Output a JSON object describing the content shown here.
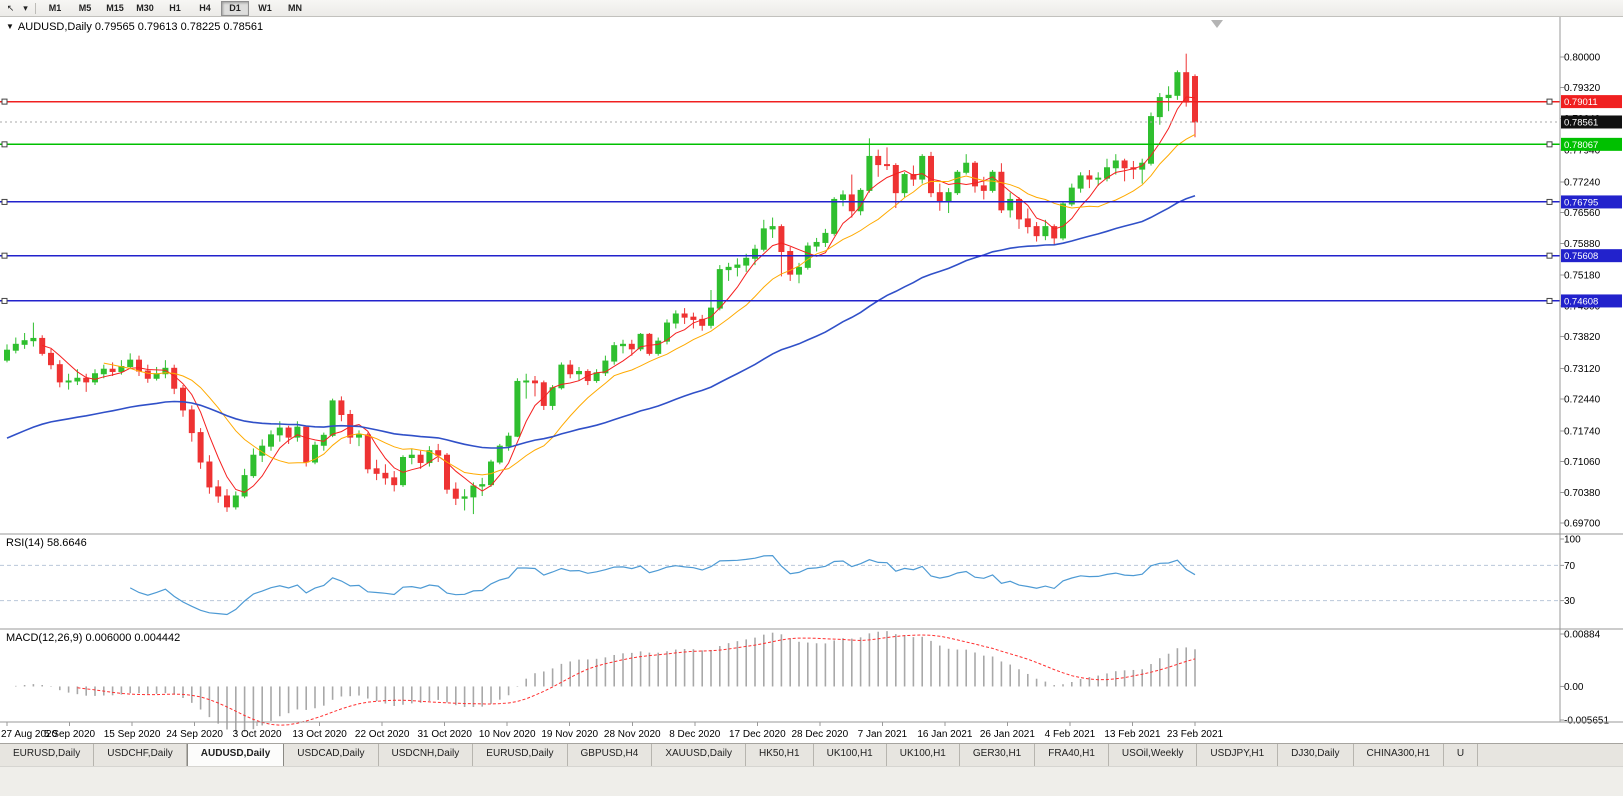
{
  "toolbar": {
    "icons": [
      {
        "name": "cursor-arrow-icon",
        "glyph": "↖"
      },
      {
        "name": "dropdown-caret-icon",
        "glyph": "▾"
      }
    ],
    "timeframes": [
      {
        "label": "M1"
      },
      {
        "label": "M5"
      },
      {
        "label": "M15"
      },
      {
        "label": "M30"
      },
      {
        "label": "H1"
      },
      {
        "label": "H4"
      },
      {
        "label": "D1"
      },
      {
        "label": "W1"
      },
      {
        "label": "MN"
      }
    ],
    "active_timeframe": "D1"
  },
  "chart_data": {
    "type": "candlestick",
    "symbol": "AUDUSD",
    "timeframe": "Daily",
    "title": "AUDUSD,Daily 0.79565 0.79613 0.78225 0.78561",
    "last_candle_ohlc": {
      "open": "0.79565",
      "high": "0.79613",
      "low": "0.78225",
      "close": "0.78561"
    },
    "price_axis": {
      "min": 0.6946,
      "max": 0.8088,
      "ticks": [
        "0.80000",
        "0.79320",
        "0.78640",
        "0.77940",
        "0.77240",
        "0.76560",
        "0.75880",
        "0.75180",
        "0.74500",
        "0.73820",
        "0.73120",
        "0.72440",
        "0.71740",
        "0.71060",
        "0.70380",
        "0.69700"
      ]
    },
    "date_ticks": [
      "27 Aug 2020",
      "5 Sep 2020",
      "15 Sep 2020",
      "24 Sep 2020",
      "3 Oct 2020",
      "13 Oct 2020",
      "22 Oct 2020",
      "31 Oct 2020",
      "10 Nov 2020",
      "19 Nov 2020",
      "28 Nov 2020",
      "8 Dec 2020",
      "17 Dec 2020",
      "28 Dec 2020",
      "7 Jan 2021",
      "16 Jan 2021",
      "26 Jan 2021",
      "4 Feb 2021",
      "13 Feb 2021",
      "23 Feb 2021"
    ],
    "hlines": [
      {
        "price": 0.79011,
        "label": "0.79011",
        "color": "#f02020",
        "width": 1.3
      },
      {
        "price": 0.78067,
        "label": "0.78067",
        "color": "#00c000",
        "width": 1.6
      },
      {
        "price": 0.76795,
        "label": "0.76795",
        "color": "#2222cc",
        "width": 1.6
      },
      {
        "price": 0.75608,
        "label": "0.75608",
        "color": "#2222cc",
        "width": 1.6
      },
      {
        "price": 0.74608,
        "label": "0.74608",
        "color": "#2222cc",
        "width": 1.6
      }
    ],
    "current_price": {
      "value": 0.78561,
      "label": "0.78561",
      "badge_color": "#111111"
    },
    "moving_averages": [
      {
        "name": "ma-fast",
        "period": 5,
        "type": "sma",
        "color": "#f52020",
        "width": 1
      },
      {
        "name": "ma-mid",
        "period": 12,
        "type": "sma",
        "color": "#ffaa00",
        "width": 1
      },
      {
        "name": "ma-slow",
        "period": 50,
        "type": "ema",
        "seed": 0.715,
        "color": "#3050c8",
        "width": 1.6
      }
    ],
    "style": {
      "up_color": "#2fbf2f",
      "down_color": "#ee3333",
      "rsi_color": "#4d9ad4",
      "level_dash_color": "#b9c7d9",
      "macd_bar_color": "#a8a8a8",
      "macd_signal_color": "#ff3030",
      "axis_line_color": "#9a9a9a",
      "text_color": "#000000"
    },
    "rsi": {
      "label": "RSI(14) 58.6646",
      "period": 14,
      "value": "58.6646",
      "levels": [
        70,
        30
      ],
      "scale_ticks": [
        "100",
        "70",
        "30"
      ]
    },
    "macd": {
      "label": "MACD(12,26,9) 0.006000 0.004442",
      "fast": 12,
      "slow": 26,
      "signal": 9,
      "values": "0.006000 0.004442",
      "scale_top": "0.00884",
      "scale_mid": "0.00",
      "scale_bottom": "-0.005651"
    },
    "candles": [
      [
        0.733,
        0.7365,
        0.7325,
        0.7352
      ],
      [
        0.7352,
        0.738,
        0.7345,
        0.7365
      ],
      [
        0.7365,
        0.739,
        0.7355,
        0.7373
      ],
      [
        0.7373,
        0.7413,
        0.736,
        0.7378
      ],
      [
        0.7378,
        0.7385,
        0.734,
        0.7345
      ],
      [
        0.7345,
        0.7355,
        0.731,
        0.732
      ],
      [
        0.732,
        0.733,
        0.727,
        0.7282
      ],
      [
        0.7282,
        0.73,
        0.7265,
        0.7284
      ],
      [
        0.7284,
        0.731,
        0.7275,
        0.729
      ],
      [
        0.729,
        0.73,
        0.726,
        0.7282
      ],
      [
        0.7282,
        0.731,
        0.7275,
        0.73
      ],
      [
        0.73,
        0.732,
        0.729,
        0.731
      ],
      [
        0.731,
        0.7325,
        0.7295,
        0.7305
      ],
      [
        0.7305,
        0.733,
        0.7298,
        0.7316
      ],
      [
        0.7316,
        0.7345,
        0.731,
        0.733
      ],
      [
        0.733,
        0.734,
        0.7295,
        0.7306
      ],
      [
        0.7306,
        0.732,
        0.728,
        0.729
      ],
      [
        0.729,
        0.7315,
        0.7285,
        0.73
      ],
      [
        0.73,
        0.733,
        0.729,
        0.7312
      ],
      [
        0.7312,
        0.732,
        0.7255,
        0.7268
      ],
      [
        0.7268,
        0.7275,
        0.7205,
        0.722
      ],
      [
        0.722,
        0.723,
        0.715,
        0.717
      ],
      [
        0.717,
        0.718,
        0.709,
        0.7105
      ],
      [
        0.7105,
        0.712,
        0.7035,
        0.705
      ],
      [
        0.705,
        0.7065,
        0.7015,
        0.703
      ],
      [
        0.703,
        0.7045,
        0.6995,
        0.7006
      ],
      [
        0.7006,
        0.704,
        0.7,
        0.703
      ],
      [
        0.703,
        0.709,
        0.7025,
        0.7075
      ],
      [
        0.7075,
        0.7135,
        0.707,
        0.712
      ],
      [
        0.712,
        0.7155,
        0.7105,
        0.714
      ],
      [
        0.714,
        0.7175,
        0.713,
        0.7165
      ],
      [
        0.7165,
        0.7195,
        0.715,
        0.718
      ],
      [
        0.718,
        0.7185,
        0.7145,
        0.716
      ],
      [
        0.716,
        0.7195,
        0.715,
        0.7182
      ],
      [
        0.7182,
        0.7185,
        0.7095,
        0.7105
      ],
      [
        0.7105,
        0.715,
        0.71,
        0.7142
      ],
      [
        0.7142,
        0.717,
        0.713,
        0.7164
      ],
      [
        0.7164,
        0.7245,
        0.716,
        0.724
      ],
      [
        0.724,
        0.725,
        0.7195,
        0.721
      ],
      [
        0.721,
        0.722,
        0.7145,
        0.716
      ],
      [
        0.716,
        0.7175,
        0.714,
        0.7165
      ],
      [
        0.7165,
        0.717,
        0.708,
        0.709
      ],
      [
        0.709,
        0.711,
        0.7065,
        0.708
      ],
      [
        0.708,
        0.71,
        0.7055,
        0.707
      ],
      [
        0.707,
        0.7085,
        0.704,
        0.7055
      ],
      [
        0.7055,
        0.712,
        0.705,
        0.7115
      ],
      [
        0.7115,
        0.7135,
        0.71,
        0.712
      ],
      [
        0.712,
        0.713,
        0.709,
        0.7104
      ],
      [
        0.7104,
        0.714,
        0.7095,
        0.713
      ],
      [
        0.713,
        0.7145,
        0.7105,
        0.712
      ],
      [
        0.712,
        0.7125,
        0.7035,
        0.7045
      ],
      [
        0.7045,
        0.706,
        0.701,
        0.7025
      ],
      [
        0.7025,
        0.7045,
        0.6998,
        0.7028
      ],
      [
        0.7028,
        0.706,
        0.699,
        0.7052
      ],
      [
        0.7052,
        0.707,
        0.703,
        0.7055
      ],
      [
        0.7055,
        0.711,
        0.705,
        0.7105
      ],
      [
        0.7105,
        0.7145,
        0.71,
        0.714
      ],
      [
        0.714,
        0.717,
        0.713,
        0.7162
      ],
      [
        0.7162,
        0.729,
        0.716,
        0.7283
      ],
      [
        0.7283,
        0.73,
        0.7245,
        0.7284
      ],
      [
        0.7284,
        0.7295,
        0.725,
        0.728
      ],
      [
        0.728,
        0.7285,
        0.722,
        0.723
      ],
      [
        0.723,
        0.7275,
        0.722,
        0.7269
      ],
      [
        0.7269,
        0.7325,
        0.7265,
        0.7319
      ],
      [
        0.7319,
        0.733,
        0.729,
        0.73
      ],
      [
        0.73,
        0.7315,
        0.7285,
        0.7305
      ],
      [
        0.7305,
        0.731,
        0.7275,
        0.7285
      ],
      [
        0.7285,
        0.731,
        0.728,
        0.7302
      ],
      [
        0.7302,
        0.734,
        0.7295,
        0.7328
      ],
      [
        0.7328,
        0.737,
        0.732,
        0.7362
      ],
      [
        0.7362,
        0.7375,
        0.7345,
        0.7365
      ],
      [
        0.7365,
        0.7375,
        0.734,
        0.7355
      ],
      [
        0.7355,
        0.739,
        0.735,
        0.7387
      ],
      [
        0.7387,
        0.739,
        0.734,
        0.7345
      ],
      [
        0.7345,
        0.738,
        0.734,
        0.7372
      ],
      [
        0.7372,
        0.742,
        0.7365,
        0.7412
      ],
      [
        0.7412,
        0.744,
        0.74,
        0.7432
      ],
      [
        0.7432,
        0.7445,
        0.741,
        0.7425
      ],
      [
        0.7425,
        0.7435,
        0.74,
        0.742
      ],
      [
        0.742,
        0.743,
        0.7395,
        0.7407
      ],
      [
        0.7407,
        0.7485,
        0.74,
        0.7445
      ],
      [
        0.7445,
        0.754,
        0.744,
        0.753
      ],
      [
        0.753,
        0.7545,
        0.7505,
        0.7535
      ],
      [
        0.7535,
        0.7555,
        0.7515,
        0.754
      ],
      [
        0.754,
        0.7565,
        0.7525,
        0.7555
      ],
      [
        0.7555,
        0.7585,
        0.754,
        0.7575
      ],
      [
        0.7575,
        0.764,
        0.757,
        0.762
      ],
      [
        0.762,
        0.7645,
        0.76,
        0.7625
      ],
      [
        0.7625,
        0.763,
        0.7515,
        0.757
      ],
      [
        0.757,
        0.758,
        0.7505,
        0.752
      ],
      [
        0.752,
        0.7545,
        0.75,
        0.7535
      ],
      [
        0.7535,
        0.759,
        0.753,
        0.7582
      ],
      [
        0.7582,
        0.76,
        0.757,
        0.759
      ],
      [
        0.759,
        0.762,
        0.758,
        0.761
      ],
      [
        0.761,
        0.769,
        0.7605,
        0.7685
      ],
      [
        0.7685,
        0.7705,
        0.767,
        0.7695
      ],
      [
        0.7695,
        0.774,
        0.7645,
        0.766
      ],
      [
        0.766,
        0.771,
        0.765,
        0.7705
      ],
      [
        0.7705,
        0.782,
        0.77,
        0.778
      ],
      [
        0.778,
        0.7795,
        0.7735,
        0.7762
      ],
      [
        0.7762,
        0.78,
        0.775,
        0.776
      ],
      [
        0.776,
        0.7765,
        0.7666,
        0.77
      ],
      [
        0.77,
        0.7745,
        0.769,
        0.774
      ],
      [
        0.774,
        0.776,
        0.7715,
        0.773
      ],
      [
        0.773,
        0.7785,
        0.772,
        0.778
      ],
      [
        0.778,
        0.779,
        0.769,
        0.77
      ],
      [
        0.77,
        0.772,
        0.766,
        0.768
      ],
      [
        0.768,
        0.771,
        0.7655,
        0.77
      ],
      [
        0.77,
        0.775,
        0.7695,
        0.7745
      ],
      [
        0.7745,
        0.7785,
        0.774,
        0.7765
      ],
      [
        0.7765,
        0.777,
        0.77,
        0.7715
      ],
      [
        0.7715,
        0.7735,
        0.7685,
        0.7705
      ],
      [
        0.7705,
        0.775,
        0.77,
        0.7745
      ],
      [
        0.7745,
        0.7765,
        0.7655,
        0.7662
      ],
      [
        0.7662,
        0.77,
        0.7645,
        0.7685
      ],
      [
        0.7685,
        0.769,
        0.762,
        0.7642
      ],
      [
        0.7642,
        0.7665,
        0.761,
        0.7625
      ],
      [
        0.7625,
        0.7635,
        0.7592,
        0.7605
      ],
      [
        0.7605,
        0.764,
        0.7595,
        0.7625
      ],
      [
        0.7625,
        0.763,
        0.7585,
        0.76
      ],
      [
        0.76,
        0.768,
        0.7595,
        0.7675
      ],
      [
        0.7675,
        0.772,
        0.767,
        0.771
      ],
      [
        0.771,
        0.7745,
        0.77,
        0.7737
      ],
      [
        0.7737,
        0.775,
        0.771,
        0.773
      ],
      [
        0.773,
        0.7745,
        0.7715,
        0.7732
      ],
      [
        0.7732,
        0.7775,
        0.7725,
        0.7755
      ],
      [
        0.7755,
        0.7785,
        0.774,
        0.777
      ],
      [
        0.777,
        0.7775,
        0.7725,
        0.7755
      ],
      [
        0.7755,
        0.777,
        0.773,
        0.7752
      ],
      [
        0.7752,
        0.7775,
        0.772,
        0.7765
      ],
      [
        0.7765,
        0.7877,
        0.776,
        0.7868
      ],
      [
        0.7868,
        0.792,
        0.785,
        0.791
      ],
      [
        0.791,
        0.7935,
        0.788,
        0.7915
      ],
      [
        0.7915,
        0.797,
        0.7905,
        0.7965
      ],
      [
        0.7965,
        0.8007,
        0.789,
        0.79
      ],
      [
        0.79565,
        0.79613,
        0.78225,
        0.78561
      ]
    ]
  },
  "tabs": {
    "active_index": 2,
    "items": [
      {
        "label": "EURUSD,Daily"
      },
      {
        "label": "USDCHF,Daily"
      },
      {
        "label": "AUDUSD,Daily"
      },
      {
        "label": "USDCAD,Daily"
      },
      {
        "label": "USDCNH,Daily"
      },
      {
        "label": "EURUSD,Daily"
      },
      {
        "label": "GBPUSD,H4"
      },
      {
        "label": "XAUUSD,Daily"
      },
      {
        "label": "HK50,H1"
      },
      {
        "label": "UK100,H1"
      },
      {
        "label": "UK100,H1"
      },
      {
        "label": "GER30,H1"
      },
      {
        "label": "FRA40,H1"
      },
      {
        "label": "USOil,Weekly"
      },
      {
        "label": "USDJPY,H1"
      },
      {
        "label": "DJ30,Daily"
      },
      {
        "label": "CHINA300,H1"
      },
      {
        "label": "U"
      }
    ]
  }
}
